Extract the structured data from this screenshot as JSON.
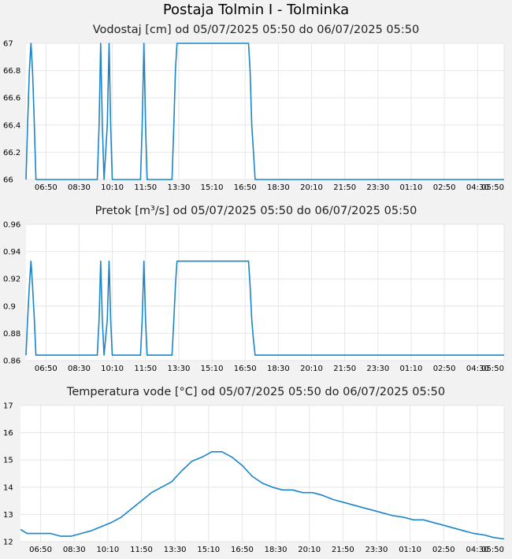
{
  "page": {
    "title": "Postaja Tolmin I - Tolminka",
    "line_color": "#1a85c9",
    "grid_color": "#e6e6e6",
    "plot_bg": "#ffffff",
    "page_bg": "#f2f2f2"
  },
  "chart_data": [
    {
      "type": "line",
      "title": "Vodostaj [cm] od 05/07/2025 05:50 do 06/07/2025 05:50",
      "xlabel": "",
      "ylabel": "",
      "x_unit": "hours since 05/07/2025 05:50",
      "xlim": [
        0,
        24
      ],
      "ylim": [
        66,
        67
      ],
      "grid": true,
      "x_tick_values": [
        1,
        2.667,
        4.333,
        6,
        7.667,
        9.333,
        11,
        12.667,
        14.333,
        16,
        17.667,
        19.333,
        21,
        22.667,
        24
      ],
      "x_tick_labels": [
        "06:50",
        "08:30",
        "10:10",
        "11:50",
        "13:30",
        "15:10",
        "16:50",
        "18:30",
        "20:10",
        "21:50",
        "23:30",
        "01:10",
        "02:50",
        "04:30",
        "05:50"
      ],
      "y_ticks": [
        66,
        66.2,
        66.4,
        66.6,
        66.8,
        67
      ],
      "y_tick_labels": [
        "66",
        "66.2",
        "66.4",
        "66.6",
        "66.8",
        "67"
      ],
      "series": [
        {
          "x": [
            0,
            0.08,
            0.17,
            0.25,
            0.33,
            0.42,
            0.5,
            3.58,
            3.67,
            3.75,
            3.83,
            3.92,
            4.08,
            4.17,
            4.25,
            4.33,
            4.42,
            5.75,
            5.83,
            5.92,
            6.0,
            6.08,
            7.33,
            7.42,
            7.5,
            7.58,
            7.67,
            11.17,
            11.25,
            11.33,
            11.42,
            11.5,
            24
          ],
          "y": [
            66,
            66.4,
            66.8,
            67,
            66.8,
            66.4,
            66,
            66,
            66.4,
            67,
            66.4,
            66,
            66.4,
            67,
            66.4,
            66,
            66,
            66,
            66.4,
            67,
            66.4,
            66,
            66,
            66.4,
            66.8,
            67,
            67,
            67,
            66.8,
            66.4,
            66.2,
            66,
            66
          ]
        }
      ]
    },
    {
      "type": "line",
      "title": "Pretok [m³/s] od 05/07/2025 05:50 do 06/07/2025 05:50",
      "xlabel": "",
      "ylabel": "",
      "x_unit": "hours since 05/07/2025 05:50",
      "xlim": [
        0,
        24
      ],
      "ylim": [
        0.86,
        0.96
      ],
      "grid": true,
      "x_tick_values": [
        1,
        2.667,
        4.333,
        6,
        7.667,
        9.333,
        11,
        12.667,
        14.333,
        16,
        17.667,
        19.333,
        21,
        22.667,
        24
      ],
      "x_tick_labels": [
        "06:50",
        "08:30",
        "10:10",
        "11:50",
        "13:30",
        "15:10",
        "16:50",
        "18:30",
        "20:10",
        "21:50",
        "23:30",
        "01:10",
        "02:50",
        "04:30",
        "05:50"
      ],
      "y_ticks": [
        0.86,
        0.88,
        0.9,
        0.92,
        0.94,
        0.96
      ],
      "y_tick_labels": [
        "0.86",
        "0.88",
        "0.9",
        "0.92",
        "0.94",
        "0.96"
      ],
      "series": [
        {
          "x": [
            0,
            0.08,
            0.17,
            0.25,
            0.33,
            0.42,
            0.5,
            3.58,
            3.67,
            3.75,
            3.83,
            3.92,
            4.08,
            4.17,
            4.25,
            4.33,
            4.42,
            5.75,
            5.83,
            5.92,
            6.0,
            6.08,
            7.33,
            7.42,
            7.5,
            7.58,
            7.67,
            11.17,
            11.25,
            11.33,
            11.42,
            11.5,
            24
          ],
          "y": [
            0.864,
            0.89,
            0.915,
            0.933,
            0.915,
            0.89,
            0.864,
            0.864,
            0.89,
            0.933,
            0.89,
            0.864,
            0.89,
            0.933,
            0.89,
            0.864,
            0.864,
            0.864,
            0.89,
            0.933,
            0.89,
            0.864,
            0.864,
            0.89,
            0.915,
            0.933,
            0.933,
            0.933,
            0.915,
            0.89,
            0.875,
            0.864,
            0.864
          ]
        }
      ]
    },
    {
      "type": "line",
      "title": "Temperatura vode [°C] od 05/07/2025 05:50 do 06/07/2025 05:50",
      "xlabel": "",
      "ylabel": "",
      "x_unit": "hours since 05/07/2025 05:50",
      "xlim": [
        0,
        24
      ],
      "ylim": [
        12,
        17
      ],
      "grid": true,
      "x_tick_values": [
        1,
        2.667,
        4.333,
        6,
        7.667,
        9.333,
        11,
        12.667,
        14.333,
        16,
        17.667,
        19.333,
        21,
        22.667,
        24
      ],
      "x_tick_labels": [
        "06:50",
        "08:30",
        "10:10",
        "11:50",
        "13:30",
        "15:10",
        "16:50",
        "18:30",
        "20:10",
        "21:50",
        "23:30",
        "01:10",
        "02:50",
        "04:30",
        "05:50"
      ],
      "y_ticks": [
        12,
        13,
        14,
        15,
        16,
        17
      ],
      "y_tick_labels": [
        "12",
        "13",
        "14",
        "15",
        "16",
        "17"
      ],
      "series": [
        {
          "x": [
            0,
            0.33,
            1.0,
            1.5,
            2.0,
            2.5,
            3.0,
            3.5,
            4.0,
            4.5,
            5.0,
            5.5,
            6.0,
            6.5,
            7.0,
            7.5,
            8.0,
            8.5,
            9.0,
            9.5,
            10.0,
            10.5,
            11.0,
            11.5,
            12.0,
            12.5,
            13.0,
            13.5,
            14.0,
            14.5,
            15.0,
            15.5,
            16.0,
            16.5,
            17.0,
            17.5,
            18.0,
            18.5,
            19.0,
            19.5,
            20.0,
            20.5,
            21.0,
            21.5,
            22.0,
            22.5,
            23.0,
            23.5,
            24.0
          ],
          "y": [
            12.45,
            12.3,
            12.3,
            12.3,
            12.2,
            12.2,
            12.3,
            12.4,
            12.55,
            12.7,
            12.9,
            13.2,
            13.5,
            13.8,
            14.0,
            14.2,
            14.6,
            14.95,
            15.1,
            15.3,
            15.3,
            15.1,
            14.8,
            14.4,
            14.15,
            14.0,
            13.9,
            13.9,
            13.8,
            13.8,
            13.7,
            13.55,
            13.45,
            13.35,
            13.25,
            13.15,
            13.05,
            12.95,
            12.9,
            12.8,
            12.8,
            12.7,
            12.6,
            12.5,
            12.4,
            12.3,
            12.25,
            12.15,
            12.1
          ]
        }
      ]
    }
  ]
}
